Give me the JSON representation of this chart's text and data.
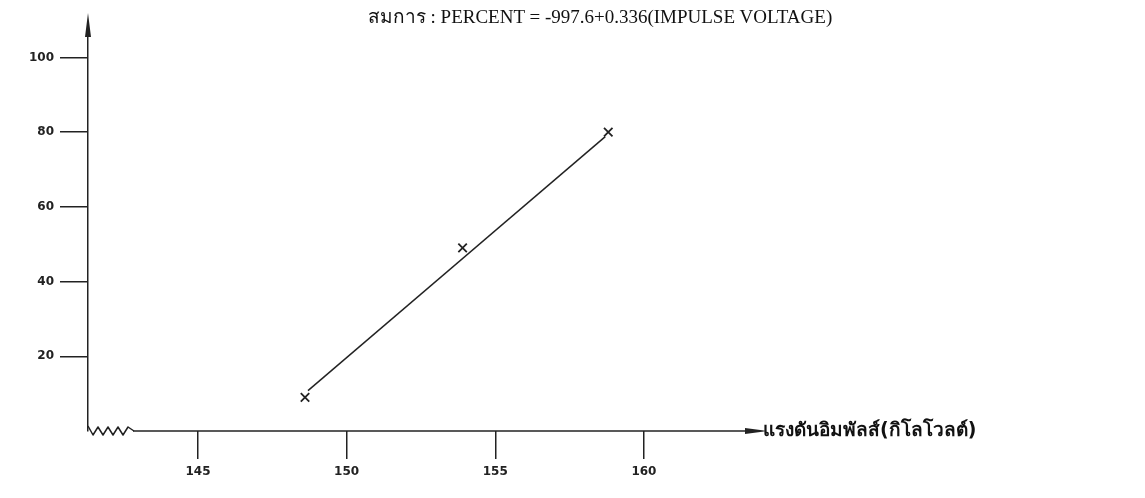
{
  "chart_data": {
    "type": "scatter",
    "xlabel": "แรงดันอิมพัลส์(กิโลโวลต์)",
    "annotations": [
      "สมการ : PERCENT = -997.6+0.336(IMPULSE VOLTAGE)"
    ],
    "xlim": [
      141.3,
      163.4
    ],
    "xticks": [
      145,
      150,
      155,
      160
    ],
    "ylim": [
      0,
      106
    ],
    "yticks": [
      20,
      40,
      60,
      80,
      100
    ],
    "legend": false,
    "series": [
      {
        "color": "#222222",
        "marker": "cross",
        "x": [
          148.6,
          153.9,
          158.8
        ],
        "values": [
          9,
          49,
          80
        ]
      },
      {
        "type": "line",
        "color": "#222222",
        "marker": "none",
        "line_style": "solid",
        "x": [
          148.7,
          158.7
        ],
        "values": [
          10.8,
          78.8
        ]
      }
    ]
  }
}
